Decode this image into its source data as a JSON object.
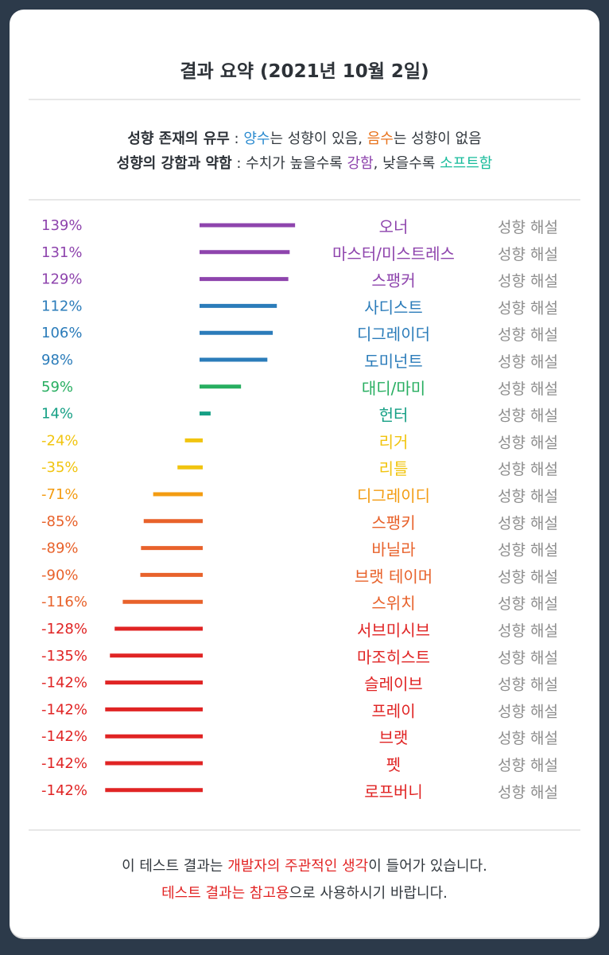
{
  "header": {
    "title": "결과 요약 (2021년 10월 2일)"
  },
  "legend": {
    "line1": {
      "label": "성향 존재의 유무",
      "sep": " : ",
      "pos": "양수",
      "pos_text": "는 성향이 있음, ",
      "neg": "음수",
      "neg_text": "는 성향이 없음"
    },
    "line2": {
      "label": "성향의 강함과 약함",
      "sep": " : 수치가 높을수록 ",
      "strong": "강함",
      "mid": ", 낮을수록 ",
      "soft": "소프트함"
    },
    "colors": {
      "pos": "#2b8bd0",
      "neg": "#e8731c",
      "strong": "#8e44ad",
      "soft": "#1abc9c"
    }
  },
  "chart_data": {
    "type": "bar",
    "orientation": "horizontal",
    "unit": "%",
    "link_label": "성향 해설",
    "rows": [
      {
        "name": "오너",
        "value": 139,
        "label": "139%",
        "color": "#8e44ad"
      },
      {
        "name": "마스터/미스트레스",
        "value": 131,
        "label": "131%",
        "color": "#8e44ad"
      },
      {
        "name": "스팽커",
        "value": 129,
        "label": "129%",
        "color": "#8e44ad"
      },
      {
        "name": "사디스트",
        "value": 112,
        "label": "112%",
        "color": "#2b7cba"
      },
      {
        "name": "디그레이더",
        "value": 106,
        "label": "106%",
        "color": "#2b7cba"
      },
      {
        "name": "도미넌트",
        "value": 98,
        "label": "98%",
        "color": "#2b7cba"
      },
      {
        "name": "대디/마미",
        "value": 59,
        "label": "59%",
        "color": "#27ae60"
      },
      {
        "name": "헌터",
        "value": 14,
        "label": "14%",
        "color": "#16a085"
      },
      {
        "name": "리거",
        "value": -24,
        "label": "-24%",
        "color": "#f1c40f"
      },
      {
        "name": "리틀",
        "value": -35,
        "label": "-35%",
        "color": "#f1c40f"
      },
      {
        "name": "디그레이디",
        "value": -71,
        "label": "-71%",
        "color": "#f39c12"
      },
      {
        "name": "스팽키",
        "value": -85,
        "label": "-85%",
        "color": "#e8622b"
      },
      {
        "name": "바닐라",
        "value": -89,
        "label": "-89%",
        "color": "#e8622b"
      },
      {
        "name": "브랫 테이머",
        "value": -90,
        "label": "-90%",
        "color": "#e8622b"
      },
      {
        "name": "스위치",
        "value": -116,
        "label": "-116%",
        "color": "#e8622b"
      },
      {
        "name": "서브미시브",
        "value": -128,
        "label": "-128%",
        "color": "#e02424"
      },
      {
        "name": "마조히스트",
        "value": -135,
        "label": "-135%",
        "color": "#e02424"
      },
      {
        "name": "슬레이브",
        "value": -142,
        "label": "-142%",
        "color": "#e02424"
      },
      {
        "name": "프레이",
        "value": -142,
        "label": "-142%",
        "color": "#e02424"
      },
      {
        "name": "브랫",
        "value": -142,
        "label": "-142%",
        "color": "#e02424"
      },
      {
        "name": "펫",
        "value": -142,
        "label": "-142%",
        "color": "#e02424"
      },
      {
        "name": "로프버니",
        "value": -142,
        "label": "-142%",
        "color": "#e02424"
      }
    ]
  },
  "footer": {
    "line1_a": "이 테스트 결과는 ",
    "line1_b": "개발자의 주관적인 생각",
    "line1_c": "이 들어가 있습니다.",
    "line2_a": "테스트 결과는 참고용",
    "line2_b": "으로 사용하시기 바랍니다.",
    "accent": "#e22424"
  }
}
